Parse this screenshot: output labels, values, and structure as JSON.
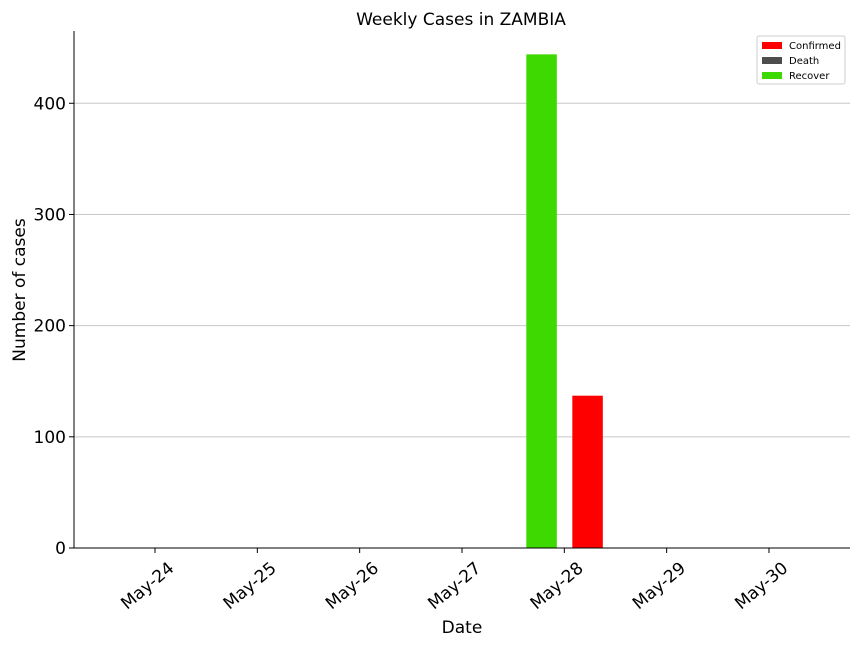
{
  "chart_data": {
    "type": "bar",
    "title": "Weekly Cases in ZAMBIA",
    "xlabel": "Date",
    "ylabel": "Number of cases",
    "categories": [
      "May-24",
      "May-25",
      "May-26",
      "May-27",
      "May-28",
      "May-29",
      "May-30"
    ],
    "yticks": [
      0,
      100,
      200,
      300,
      400
    ],
    "ylim": [
      0,
      465
    ],
    "grid": "horizontal",
    "legend_position": "top-right",
    "series": [
      {
        "name": "Confirmed",
        "color": "#ff0000",
        "values": [
          0,
          0,
          0,
          0,
          137,
          0,
          0
        ]
      },
      {
        "name": "Death",
        "color": "#4d4d4d",
        "values": [
          0,
          0,
          0,
          0,
          0,
          0,
          0
        ]
      },
      {
        "name": "Recover",
        "color": "#3dd900",
        "values": [
          0,
          0,
          0,
          0,
          444,
          0,
          0
        ]
      }
    ]
  }
}
